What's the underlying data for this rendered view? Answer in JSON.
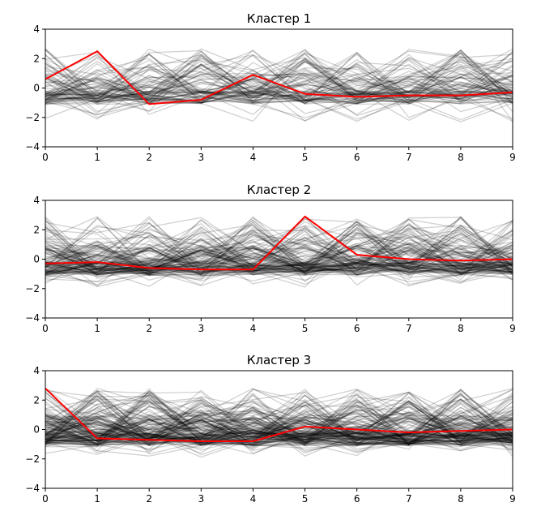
{
  "chart_data": [
    {
      "type": "line",
      "title": "Кластер 1",
      "x": [
        0,
        1,
        2,
        3,
        4,
        5,
        6,
        7,
        8,
        9
      ],
      "xlim": [
        0,
        9
      ],
      "ylim": [
        -4,
        4
      ],
      "x_ticks": [
        0,
        1,
        2,
        3,
        4,
        5,
        6,
        7,
        8,
        9
      ],
      "y_ticks": [
        -4,
        -2,
        0,
        2,
        4
      ],
      "background_lines": {
        "color": "#000000",
        "opacity": 0.18,
        "count": 90,
        "y_range": [
          -2.3,
          2.7
        ]
      },
      "series": [
        {
          "color": "#ff0000",
          "values": [
            0.6,
            2.5,
            -1.1,
            -0.8,
            0.9,
            -0.4,
            -0.6,
            -0.5,
            -0.5,
            -0.3
          ]
        }
      ]
    },
    {
      "type": "line",
      "title": "Кластер 2",
      "x": [
        0,
        1,
        2,
        3,
        4,
        5,
        6,
        7,
        8,
        9
      ],
      "xlim": [
        0,
        9
      ],
      "ylim": [
        -4,
        4
      ],
      "x_ticks": [
        0,
        1,
        2,
        3,
        4,
        5,
        6,
        7,
        8,
        9
      ],
      "y_ticks": [
        -4,
        -2,
        0,
        2,
        4
      ],
      "background_lines": {
        "color": "#000000",
        "opacity": 0.18,
        "count": 130,
        "y_range": [
          -1.9,
          2.9
        ]
      },
      "series": [
        {
          "color": "#ff0000",
          "values": [
            -0.3,
            -0.2,
            -0.6,
            -0.7,
            -0.7,
            2.9,
            0.3,
            0.0,
            -0.1,
            0.0
          ]
        }
      ]
    },
    {
      "type": "line",
      "title": "Кластер 3",
      "x": [
        0,
        1,
        2,
        3,
        4,
        5,
        6,
        7,
        8,
        9
      ],
      "xlim": [
        0,
        9
      ],
      "ylim": [
        -4,
        4
      ],
      "x_ticks": [
        0,
        1,
        2,
        3,
        4,
        5,
        6,
        7,
        8,
        9
      ],
      "y_ticks": [
        -4,
        -2,
        0,
        2,
        4
      ],
      "background_lines": {
        "color": "#000000",
        "opacity": 0.18,
        "count": 160,
        "y_range": [
          -1.9,
          2.8
        ]
      },
      "series": [
        {
          "color": "#ff0000",
          "values": [
            2.8,
            -0.6,
            -0.7,
            -0.8,
            -0.8,
            0.2,
            0.0,
            -0.2,
            -0.1,
            0.0
          ]
        }
      ]
    }
  ]
}
